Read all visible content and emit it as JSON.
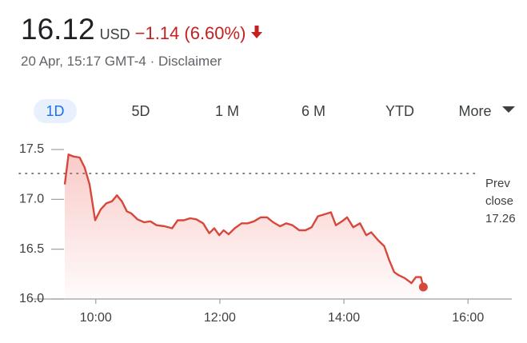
{
  "header": {
    "price": "16.12",
    "currency": "USD",
    "change": "−1.14 (6.60%)",
    "timestamp": "20 Apr, 15:17 GMT-4 · Disclaimer"
  },
  "tabs": [
    "1D",
    "5D",
    "1 M",
    "6 M",
    "YTD",
    "More"
  ],
  "chart_data": {
    "type": "line",
    "color": "#d8473b",
    "x": [
      9.5,
      9.56,
      9.64,
      9.74,
      9.82,
      9.9,
      9.99,
      10.08,
      10.17,
      10.26,
      10.34,
      10.42,
      10.5,
      10.57,
      10.67,
      10.78,
      10.88,
      10.98,
      11.11,
      11.23,
      11.32,
      11.42,
      11.52,
      11.62,
      11.73,
      11.83,
      11.91,
      11.99,
      12.06,
      12.14,
      12.24,
      12.35,
      12.45,
      12.55,
      12.66,
      12.76,
      12.86,
      12.97,
      13.07,
      13.17,
      13.28,
      13.38,
      13.48,
      13.58,
      13.69,
      13.79,
      13.87,
      13.97,
      14.05,
      14.15,
      14.26,
      14.36,
      14.44,
      14.55,
      14.65,
      14.73,
      14.81,
      14.88,
      14.98,
      15.09,
      15.16,
      15.24,
      15.28
    ],
    "values": [
      17.15,
      17.45,
      17.43,
      17.42,
      17.32,
      17.15,
      16.79,
      16.9,
      16.96,
      16.98,
      17.04,
      16.98,
      16.88,
      16.86,
      16.8,
      16.77,
      16.78,
      16.74,
      16.73,
      16.71,
      16.79,
      16.79,
      16.81,
      16.8,
      16.76,
      16.66,
      16.71,
      16.64,
      16.69,
      16.65,
      16.71,
      16.76,
      16.76,
      16.78,
      16.82,
      16.82,
      16.77,
      16.73,
      16.76,
      16.74,
      16.69,
      16.69,
      16.72,
      16.83,
      16.85,
      16.87,
      16.74,
      16.78,
      16.82,
      16.72,
      16.76,
      16.64,
      16.67,
      16.59,
      16.53,
      16.39,
      16.27,
      16.24,
      16.21,
      16.16,
      16.22,
      16.22,
      16.12
    ],
    "xlim": [
      9.5,
      16.5
    ],
    "xticks": [
      {
        "value": 10,
        "label": "10:00"
      },
      {
        "value": 12,
        "label": "12:00"
      },
      {
        "value": 14,
        "label": "14:00"
      },
      {
        "value": 16,
        "label": "16:00"
      }
    ],
    "ylim": [
      16,
      17.5
    ],
    "yticks": [
      {
        "value": 16,
        "label": "16.0"
      },
      16.5,
      {
        "value": 17,
        "label": "17.0"
      },
      17.5
    ],
    "prev_close": {
      "label": "Prev close",
      "value": 17.26
    }
  }
}
